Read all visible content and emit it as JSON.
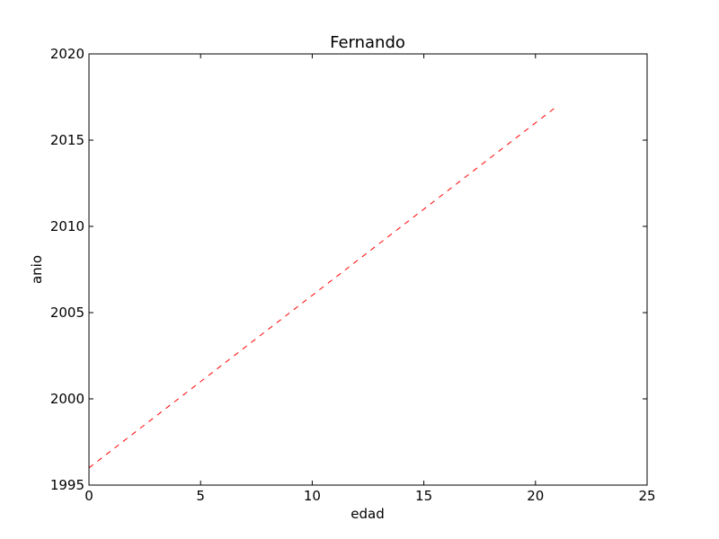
{
  "chart_data": {
    "type": "line",
    "title": "Fernando",
    "xlabel": "edad",
    "ylabel": "anio",
    "xlim": [
      0,
      25
    ],
    "ylim": [
      1995,
      2020
    ],
    "xticks": [
      0,
      5,
      10,
      15,
      20,
      25
    ],
    "yticks": [
      1995,
      2000,
      2005,
      2010,
      2015,
      2020
    ],
    "grid": false,
    "legend": "none",
    "series": [
      {
        "color": "#ff0000",
        "line_style": "dashed",
        "x": [
          0,
          21
        ],
        "y": [
          1996,
          2017
        ]
      }
    ]
  }
}
